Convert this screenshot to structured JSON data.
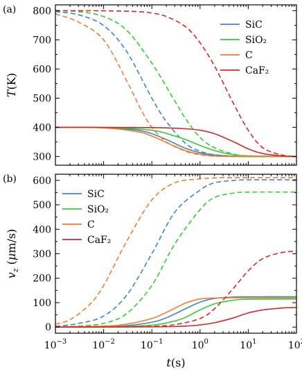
{
  "chart_data": [
    {
      "type": "line",
      "panel_label": "(a)",
      "xscale": "log",
      "xlim": [
        0.001,
        100
      ],
      "ylim": [
        270,
        820
      ],
      "yticks": [
        300,
        400,
        500,
        600,
        700,
        800
      ],
      "ylabel_italic": "T",
      "ylabel_unit": "(K)",
      "xlabel": "",
      "legend_position": "top-right",
      "legend": [
        {
          "label": "SiC",
          "color": "#3d85c6"
        },
        {
          "label": "SiO₂",
          "color": "#33cc33"
        },
        {
          "label": "C",
          "color": "#ef7d30"
        },
        {
          "label": "CaF₂",
          "color": "#d62728"
        }
      ],
      "series": [
        {
          "name": "SiC",
          "style": "solid",
          "color": "#3d85c6",
          "x": [
            0.001,
            0.01,
            0.05,
            0.1,
            0.2,
            0.5,
            1,
            2,
            5,
            10,
            100
          ],
          "y": [
            400,
            399,
            390,
            378,
            358,
            328,
            313,
            305,
            301,
            300,
            300
          ]
        },
        {
          "name": "SiC",
          "style": "dashed",
          "color": "#3d85c6",
          "x": [
            0.001,
            0.003,
            0.01,
            0.03,
            0.1,
            0.2,
            0.5,
            1,
            2,
            5,
            10,
            100
          ],
          "y": [
            797,
            786,
            749,
            660,
            500,
            420,
            345,
            318,
            306,
            301,
            300,
            300
          ]
        },
        {
          "name": "SiO₂",
          "style": "solid",
          "color": "#33cc33",
          "x": [
            0.001,
            0.01,
            0.1,
            0.3,
            0.5,
            1,
            2,
            5,
            10,
            100
          ],
          "y": [
            400,
            399.5,
            390,
            370,
            358,
            338,
            320,
            306,
            302,
            300
          ]
        },
        {
          "name": "SiO₂",
          "style": "dashed",
          "color": "#33cc33",
          "x": [
            0.001,
            0.003,
            0.01,
            0.03,
            0.1,
            0.3,
            0.5,
            1,
            2,
            5,
            10,
            100
          ],
          "y": [
            800,
            797,
            780,
            733,
            620,
            490,
            430,
            365,
            330,
            308,
            302,
            300
          ]
        },
        {
          "name": "C",
          "style": "solid",
          "color": "#ef7d30",
          "x": [
            0.001,
            0.01,
            0.05,
            0.1,
            0.2,
            0.5,
            1,
            2,
            5,
            100
          ],
          "y": [
            400,
            398,
            385,
            370,
            348,
            320,
            308,
            302,
            300,
            300
          ]
        },
        {
          "name": "C",
          "style": "dashed",
          "color": "#ef7d30",
          "x": [
            0.001,
            0.003,
            0.01,
            0.03,
            0.06,
            0.1,
            0.2,
            0.5,
            1,
            2,
            5,
            100
          ],
          "y": [
            789,
            761,
            700,
            560,
            460,
            400,
            350,
            318,
            306,
            301,
            300,
            300
          ]
        },
        {
          "name": "CaF₂",
          "style": "solid",
          "color": "#d62728",
          "x": [
            0.001,
            0.1,
            0.5,
            1,
            2,
            5,
            10,
            20,
            50,
            100
          ],
          "y": [
            400,
            399,
            395,
            390,
            378,
            350,
            326,
            310,
            302,
            300
          ]
        },
        {
          "name": "CaF₂",
          "style": "dashed",
          "color": "#d62728",
          "x": [
            0.001,
            0.01,
            0.05,
            0.1,
            0.2,
            0.5,
            1,
            2,
            5,
            10,
            20,
            50,
            100
          ],
          "y": [
            800,
            799.5,
            797,
            792,
            780,
            745,
            690,
            610,
            480,
            390,
            330,
            305,
            300
          ]
        }
      ]
    },
    {
      "type": "line",
      "panel_label": "(b)",
      "xscale": "log",
      "xlim": [
        0.001,
        100
      ],
      "ylim": [
        -25,
        625
      ],
      "yticks": [
        0,
        100,
        200,
        300,
        400,
        500,
        600
      ],
      "xticks": [
        0.001,
        0.01,
        0.1,
        1,
        10,
        100
      ],
      "xtick_bases": [
        "10",
        "10",
        "10",
        "10",
        "10",
        "10"
      ],
      "xtick_exponents": [
        "−3",
        "−2",
        "−1",
        "0",
        "1",
        "2"
      ],
      "ylabel_italic": "v",
      "ylabel_sub": "z",
      "ylabel_unit_pre": "(",
      "ylabel_unit_italic": "μ",
      "ylabel_unit_post": "m/s)",
      "xlabel_italic": "t",
      "xlabel_unit": "(s)",
      "legend_position": "top-left",
      "legend": [
        {
          "label": "SiC",
          "color": "#3d85c6"
        },
        {
          "label": "SiO₂",
          "color": "#33cc33"
        },
        {
          "label": "C",
          "color": "#ef7d30"
        },
        {
          "label": "CaF₂",
          "color": "#d62728"
        }
      ],
      "series": [
        {
          "name": "SiC",
          "style": "solid",
          "color": "#3d85c6",
          "x": [
            0.001,
            0.01,
            0.03,
            0.1,
            0.2,
            0.5,
            1,
            2,
            5,
            10,
            100
          ],
          "y": [
            0,
            2,
            6,
            20,
            38,
            75,
            102,
            117,
            123,
            124,
            124
          ]
        },
        {
          "name": "SiC",
          "style": "dashed",
          "color": "#3d85c6",
          "x": [
            0.001,
            0.003,
            0.01,
            0.03,
            0.1,
            0.3,
            1,
            2,
            5,
            10,
            100
          ],
          "y": [
            3,
            15,
            45,
            130,
            300,
            470,
            560,
            590,
            600,
            602,
            602
          ]
        },
        {
          "name": "SiO₂",
          "style": "solid",
          "color": "#33cc33",
          "x": [
            0.001,
            0.01,
            0.1,
            0.3,
            0.5,
            1,
            2,
            5,
            10,
            100
          ],
          "y": [
            0,
            1,
            8,
            25,
            40,
            70,
            95,
            110,
            114,
            115
          ]
        },
        {
          "name": "SiO₂",
          "style": "dashed",
          "color": "#33cc33",
          "x": [
            0.001,
            0.003,
            0.01,
            0.03,
            0.1,
            0.3,
            1,
            2,
            5,
            10,
            100
          ],
          "y": [
            1,
            4,
            15,
            55,
            170,
            340,
            480,
            530,
            548,
            552,
            552
          ]
        },
        {
          "name": "C",
          "style": "solid",
          "color": "#ef7d30",
          "x": [
            0.001,
            0.01,
            0.03,
            0.1,
            0.2,
            0.5,
            1,
            2,
            5,
            100
          ],
          "y": [
            1,
            4,
            12,
            35,
            60,
            98,
            115,
            119,
            120,
            120
          ]
        },
        {
          "name": "C",
          "style": "dashed",
          "color": "#ef7d30",
          "x": [
            0.001,
            0.002,
            0.005,
            0.01,
            0.03,
            0.1,
            0.3,
            1,
            2,
            5,
            100
          ],
          "y": [
            12,
            30,
            90,
            170,
            350,
            520,
            590,
            606,
            610,
            611,
            611
          ]
        },
        {
          "name": "CaF₂",
          "style": "solid",
          "color": "#d62728",
          "x": [
            0.001,
            0.1,
            0.5,
            1,
            2,
            5,
            10,
            20,
            50,
            100
          ],
          "y": [
            0,
            1,
            4,
            9,
            18,
            38,
            58,
            70,
            78,
            80
          ]
        },
        {
          "name": "CaF₂",
          "style": "dashed",
          "color": "#d62728",
          "x": [
            0.001,
            0.03,
            0.1,
            0.3,
            1,
            2,
            5,
            10,
            20,
            50,
            100
          ],
          "y": [
            0,
            1,
            3,
            10,
            35,
            75,
            160,
            230,
            280,
            305,
            310
          ]
        }
      ]
    }
  ]
}
